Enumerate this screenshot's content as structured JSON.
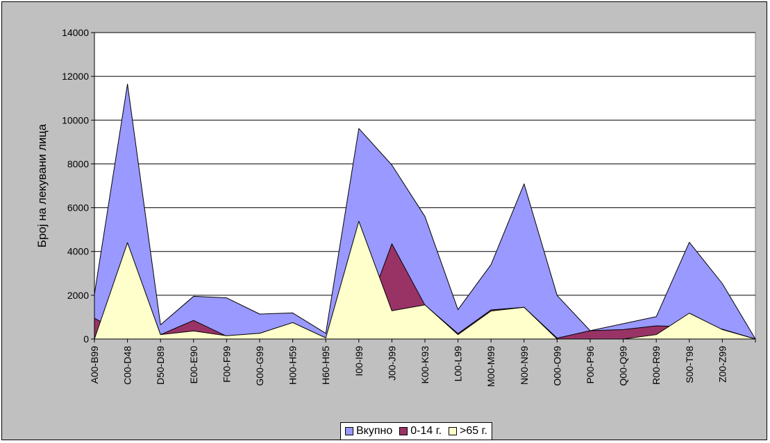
{
  "chart_data": {
    "type": "area",
    "title": "",
    "xlabel": "",
    "ylabel": "Број на лекувани лица",
    "ylim": [
      0,
      14000
    ],
    "yticks": [
      0,
      2000,
      4000,
      6000,
      8000,
      10000,
      12000,
      14000
    ],
    "grid": true,
    "legend_position": "bottom",
    "categories": [
      "A00-B99",
      "C00-D48",
      "D50-D89",
      "E00-E90",
      "F00-F99",
      "G00-G99",
      "H00-H59",
      "H60-H95",
      "I00-I99",
      "J00-J99",
      "K00-K93",
      "L00-L99",
      "M00-M99",
      "N00-N99",
      "O00-O99",
      "P00-P96",
      "Q00-Q99",
      "R00-R99",
      "S00-T98",
      "Z00-Z99",
      ""
    ],
    "series": [
      {
        "name": "Вкупно",
        "color": "#9999ff",
        "values": [
          2050,
          11650,
          650,
          1950,
          1880,
          1140,
          1190,
          260,
          9620,
          7950,
          5600,
          1340,
          3400,
          7090,
          1990,
          380,
          700,
          1020,
          4420,
          2530,
          0
        ]
      },
      {
        "name": "0-14 г.",
        "color": "#993366",
        "values": [
          950,
          150,
          200,
          850,
          130,
          260,
          750,
          50,
          260,
          4350,
          1550,
          250,
          1330,
          1450,
          40,
          380,
          430,
          600,
          560,
          450,
          0
        ]
      },
      {
        "name": ">65 г.",
        "color": "#ffffcc",
        "values": [
          0,
          4400,
          200,
          370,
          150,
          260,
          750,
          50,
          5380,
          1290,
          1560,
          200,
          1280,
          1450,
          0,
          0,
          0,
          200,
          1180,
          430,
          0
        ]
      }
    ]
  }
}
